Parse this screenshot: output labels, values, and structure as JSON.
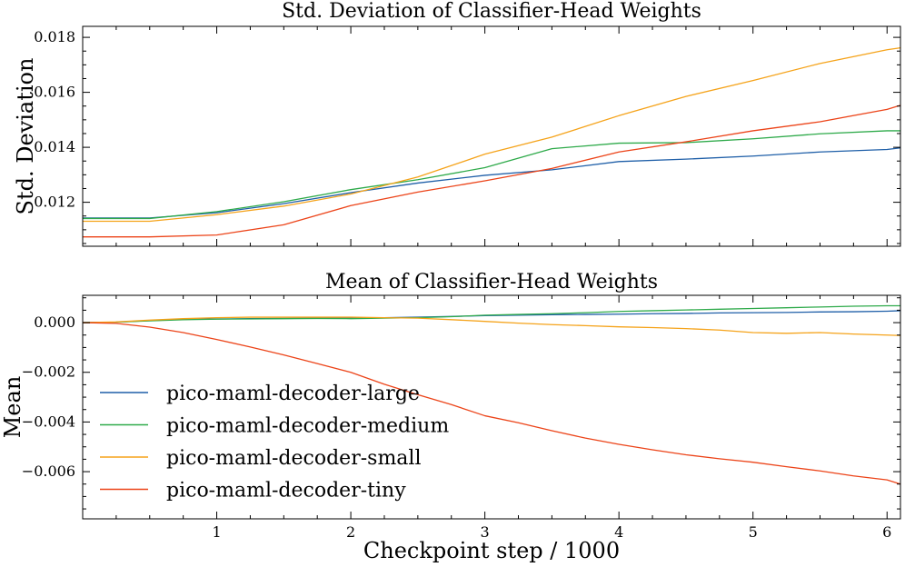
{
  "chart_data": [
    {
      "type": "line",
      "title": "Std. Deviation of Classifier-Head Weights",
      "ylabel": "Std. Deviation",
      "xlabel": "",
      "xlim": [
        0.0,
        6.1
      ],
      "ylim": [
        0.0104,
        0.0184
      ],
      "xticks": [
        "1",
        "2",
        "3",
        "4",
        "5",
        "6"
      ],
      "yticks": [
        "0.012",
        "0.014",
        "0.016",
        "0.018"
      ],
      "ytick_values": [
        0.012,
        0.014,
        0.016,
        0.018
      ],
      "x": [
        0.0,
        0.5,
        1.0,
        1.5,
        2.0,
        2.5,
        3.0,
        3.5,
        4.0,
        4.5,
        5.0,
        5.5,
        6.0,
        6.1
      ],
      "series": [
        {
          "name": "pico-maml-decoder-large",
          "color": "#1f5fa8",
          "values": [
            0.01143,
            0.01143,
            0.01162,
            0.01195,
            0.01235,
            0.0127,
            0.01298,
            0.01318,
            0.01348,
            0.01357,
            0.01368,
            0.01383,
            0.01392,
            0.01398
          ]
        },
        {
          "name": "pico-maml-decoder-medium",
          "color": "#2eaa4a",
          "values": [
            0.01141,
            0.01141,
            0.01166,
            0.01202,
            0.01246,
            0.01282,
            0.01326,
            0.01395,
            0.01415,
            0.01417,
            0.01431,
            0.01449,
            0.0146,
            0.0146
          ]
        },
        {
          "name": "pico-maml-decoder-small",
          "color": "#f5a31a",
          "values": [
            0.01131,
            0.01131,
            0.01155,
            0.01186,
            0.0123,
            0.01292,
            0.01375,
            0.01437,
            0.01515,
            0.01585,
            0.01643,
            0.01705,
            0.01755,
            0.01762
          ]
        },
        {
          "name": "pico-maml-decoder-tiny",
          "color": "#ec4419",
          "values": [
            0.01074,
            0.01074,
            0.01081,
            0.01118,
            0.01188,
            0.01237,
            0.01278,
            0.01323,
            0.01383,
            0.0142,
            0.0146,
            0.01493,
            0.01538,
            0.01553
          ]
        }
      ]
    },
    {
      "type": "line",
      "title": "Mean of Classifier-Head Weights",
      "ylabel": "Mean",
      "xlabel": "Checkpoint step / 1000",
      "xlim": [
        0.0,
        6.1
      ],
      "ylim": [
        -0.0079,
        0.0011
      ],
      "xticks": [
        "1",
        "2",
        "3",
        "4",
        "5",
        "6"
      ],
      "yticks": [
        "0.000",
        "−0.002",
        "−0.004",
        "−0.006"
      ],
      "ytick_values": [
        0.0,
        -0.002,
        -0.004,
        -0.006
      ],
      "legend_position": "lower-left",
      "x": [
        0.0,
        0.25,
        0.5,
        0.75,
        1.0,
        1.25,
        1.5,
        1.75,
        2.0,
        2.25,
        2.5,
        2.75,
        3.0,
        3.25,
        3.5,
        3.75,
        4.0,
        4.25,
        4.5,
        4.75,
        5.0,
        5.25,
        5.5,
        5.75,
        6.0,
        6.1
      ],
      "series": [
        {
          "name": "pico-maml-decoder-large",
          "color": "#1f5fa8",
          "values": [
            0.0,
            2e-05,
            8e-05,
            0.00013,
            0.00015,
            0.00016,
            0.00017,
            0.00018,
            0.00019,
            0.0002,
            0.00022,
            0.00025,
            0.00028,
            0.0003,
            0.00032,
            0.00033,
            0.00034,
            0.00036,
            0.00037,
            0.00039,
            0.0004,
            0.00041,
            0.00043,
            0.00044,
            0.00046,
            0.00048
          ]
        },
        {
          "name": "pico-maml-decoder-medium",
          "color": "#2eaa4a",
          "values": [
            0.0,
            2e-05,
            7e-05,
            0.00012,
            0.00014,
            0.00015,
            0.00016,
            0.00017,
            0.00016,
            0.00018,
            0.0002,
            0.00024,
            0.0003,
            0.00033,
            0.00036,
            0.0004,
            0.00045,
            0.00048,
            0.00051,
            0.00054,
            0.00057,
            0.0006,
            0.00063,
            0.00066,
            0.00068,
            0.00068
          ]
        },
        {
          "name": "pico-maml-decoder-small",
          "color": "#f5a31a",
          "values": [
            0.0,
            3e-05,
            0.0001,
            0.00016,
            0.0002,
            0.00022,
            0.00022,
            0.00022,
            0.00022,
            0.0002,
            0.00018,
            0.00012,
            5e-05,
            -2e-05,
            -8e-05,
            -0.00012,
            -0.00017,
            -0.0002,
            -0.00024,
            -0.0003,
            -0.0004,
            -0.00043,
            -0.0004,
            -0.00046,
            -0.0005,
            -0.00052
          ]
        },
        {
          "name": "pico-maml-decoder-tiny",
          "color": "#ec4419",
          "values": [
            0.0,
            -3e-05,
            -0.00018,
            -0.0004,
            -0.00068,
            -0.00098,
            -0.0013,
            -0.00165,
            -0.002,
            -0.00248,
            -0.0029,
            -0.0033,
            -0.00375,
            -0.00403,
            -0.00435,
            -0.00465,
            -0.0049,
            -0.00512,
            -0.00532,
            -0.00548,
            -0.00562,
            -0.0058,
            -0.00597,
            -0.00617,
            -0.00633,
            -0.0065
          ]
        }
      ]
    }
  ]
}
